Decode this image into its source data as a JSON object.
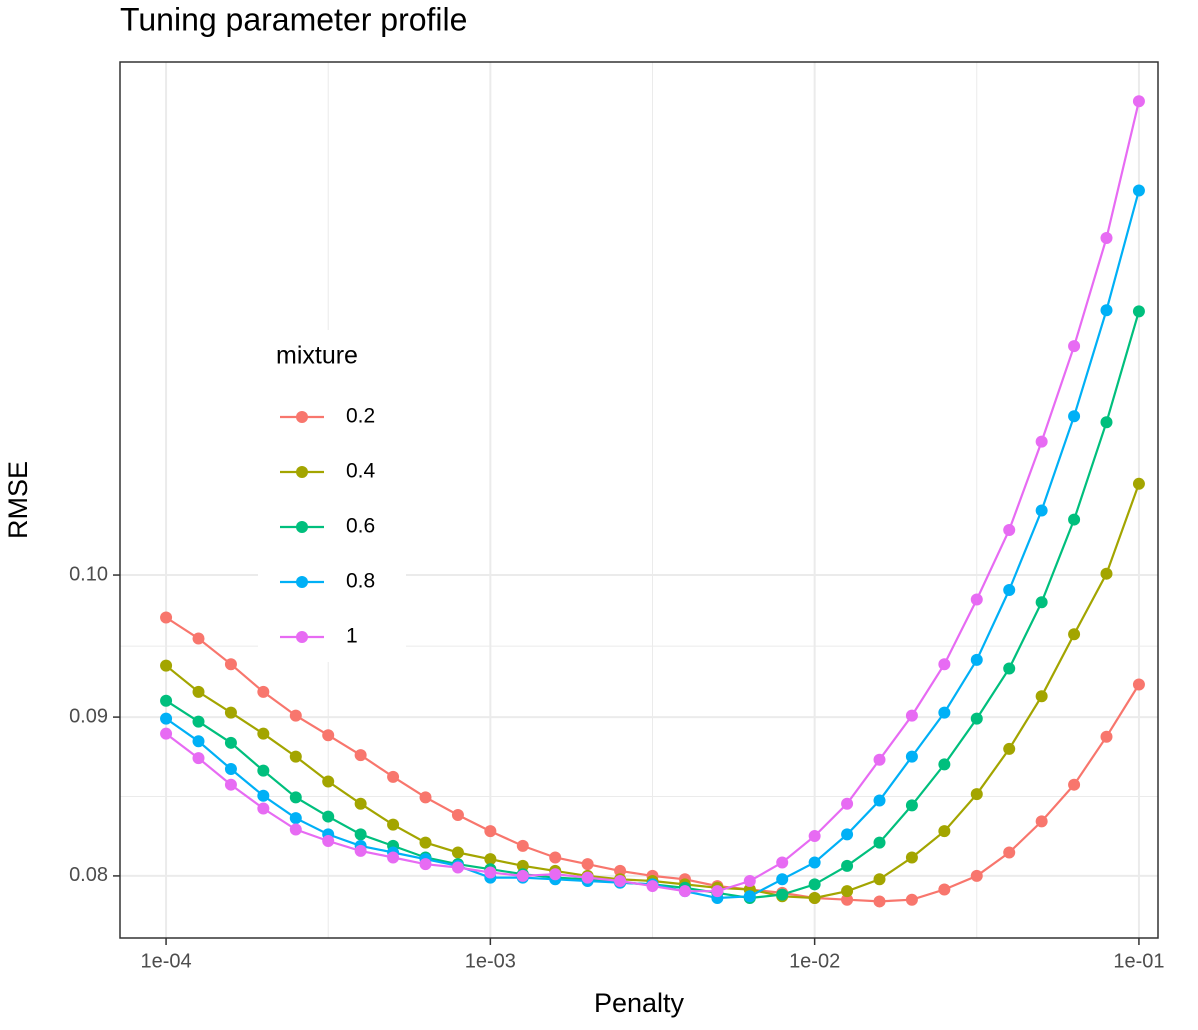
{
  "chart_data": {
    "type": "line",
    "title": "Tuning parameter profile",
    "x_label": "Penalty",
    "y_label": "RMSE",
    "x": [
      0.0001,
      0.0001259,
      0.0001585,
      0.0001995,
      0.0002512,
      0.0003162,
      0.0003981,
      0.0005012,
      0.000631,
      0.0007943,
      0.001,
      0.001259,
      0.001585,
      0.001995,
      0.002512,
      0.003162,
      0.003981,
      0.005012,
      0.00631,
      0.007943,
      0.01,
      0.01259,
      0.01585,
      0.01995,
      0.02512,
      0.03162,
      0.03981,
      0.05012,
      0.0631,
      0.07943,
      0.1
    ],
    "series": [
      {
        "name": "0.2",
        "color": "#F8766D",
        "values": [
          0.0969,
          0.0954,
          0.0936,
          0.0917,
          0.0901,
          0.0888,
          0.0875,
          0.0861,
          0.0848,
          0.0837,
          0.0827,
          0.0818,
          0.0811,
          0.0807,
          0.0803,
          0.08,
          0.0798,
          0.0794,
          0.0792,
          0.079,
          0.0787,
          0.0786,
          0.0785,
          0.0786,
          0.0792,
          0.08,
          0.0814,
          0.0833,
          0.0856,
          0.0887,
          0.0922
        ]
      },
      {
        "name": "0.4",
        "color": "#A3A500",
        "values": [
          0.0935,
          0.0917,
          0.0903,
          0.0889,
          0.0874,
          0.0858,
          0.0844,
          0.0831,
          0.082,
          0.0814,
          0.081,
          0.0806,
          0.0803,
          0.08,
          0.0798,
          0.0797,
          0.0795,
          0.0793,
          0.0792,
          0.0788,
          0.0787,
          0.0791,
          0.0798,
          0.0811,
          0.0827,
          0.085,
          0.0879,
          0.0914,
          0.0957,
          0.1001,
          0.107
        ]
      },
      {
        "name": "0.6",
        "color": "#00BF7D",
        "values": [
          0.0911,
          0.0897,
          0.0883,
          0.0865,
          0.0848,
          0.0836,
          0.0825,
          0.0818,
          0.0811,
          0.0807,
          0.0804,
          0.0801,
          0.0799,
          0.0798,
          0.0796,
          0.0795,
          0.0793,
          0.079,
          0.0787,
          0.0789,
          0.0795,
          0.0806,
          0.082,
          0.0843,
          0.0869,
          0.0899,
          0.0933,
          0.098,
          0.1042,
          0.112,
          0.1216
        ]
      },
      {
        "name": "0.8",
        "color": "#00B0F6",
        "values": [
          0.0899,
          0.0884,
          0.0866,
          0.0849,
          0.0835,
          0.0825,
          0.0818,
          0.0814,
          0.081,
          0.0806,
          0.0799,
          0.0799,
          0.0798,
          0.0797,
          0.0796,
          0.0795,
          0.0791,
          0.0787,
          0.0788,
          0.0798,
          0.0808,
          0.0825,
          0.0846,
          0.0874,
          0.0903,
          0.0939,
          0.0989,
          0.1049,
          0.1125,
          0.1217,
          0.133
        ]
      },
      {
        "name": "1",
        "color": "#E76BF3",
        "values": [
          0.0889,
          0.0873,
          0.0856,
          0.0841,
          0.0828,
          0.0821,
          0.0815,
          0.0811,
          0.0807,
          0.0805,
          0.0802,
          0.08,
          0.0801,
          0.0799,
          0.0797,
          0.0794,
          0.0791,
          0.0791,
          0.0797,
          0.0808,
          0.0824,
          0.0844,
          0.0872,
          0.0901,
          0.0936,
          0.0982,
          0.1034,
          0.1104,
          0.1185,
          0.1284,
          0.1421
        ]
      }
    ],
    "legend_title": "mixture",
    "xlim": [
      7.21e-05,
      0.1145
    ],
    "ylim": [
      0.0764,
      0.1463
    ],
    "xticks": [
      {
        "value": 0.0001,
        "label": "1e-04"
      },
      {
        "value": 0.001,
        "label": "1e-03"
      },
      {
        "value": 0.01,
        "label": "1e-02"
      },
      {
        "value": 0.1,
        "label": "1e-01"
      }
    ],
    "yticks": [
      {
        "value": 0.08,
        "label": "0.08"
      },
      {
        "value": 0.09,
        "label": "0.09"
      },
      {
        "value": 0.1,
        "label": "0.10"
      }
    ],
    "x_log": true,
    "y_log": true,
    "grid": true,
    "minor_grid": true,
    "legend_position": "inside-left"
  }
}
